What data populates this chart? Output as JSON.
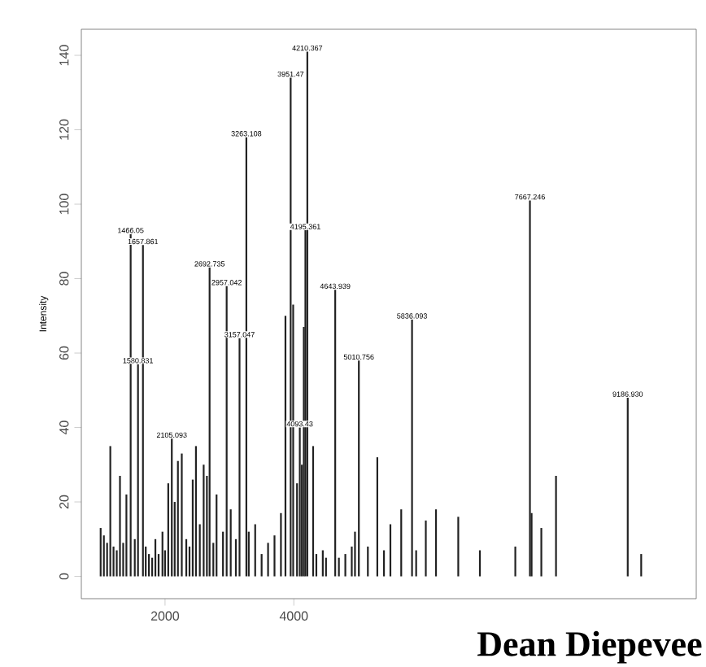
{
  "chart_data": {
    "type": "bar",
    "ylabel": "Intensity",
    "x": [
      1000,
      1050,
      1100,
      1150,
      1200,
      1250,
      1300,
      1350,
      1400,
      1466,
      1530,
      1580,
      1657,
      1700,
      1750,
      1800,
      1850,
      1900,
      1960,
      2000,
      2050,
      2105,
      2150,
      2200,
      2260,
      2330,
      2380,
      2430,
      2480,
      2540,
      2600,
      2650,
      2692,
      2750,
      2800,
      2900,
      2957,
      3020,
      3100,
      3157,
      3263,
      3300,
      3400,
      3500,
      3600,
      3700,
      3800,
      3870,
      3951,
      3990,
      4050,
      4093,
      4125,
      4155,
      4180,
      4210,
      4300,
      4350,
      4450,
      4500,
      4643,
      4700,
      4800,
      4900,
      4950,
      5010,
      5150,
      5297,
      5400,
      5500,
      5668,
      5836,
      5900,
      6050,
      6208,
      6554,
      6890,
      7440,
      7667,
      7693,
      7844,
      8072,
      9186,
      9395
    ],
    "values": [
      13,
      11,
      9,
      35,
      8,
      7,
      27,
      9,
      22,
      92,
      10,
      57,
      89,
      8,
      6,
      5,
      10,
      6,
      12,
      7,
      25,
      37,
      20,
      31,
      33,
      10,
      8,
      26,
      35,
      14,
      30,
      27,
      83,
      9,
      22,
      12,
      78,
      18,
      10,
      64,
      118,
      12,
      14,
      6,
      9,
      11,
      17,
      70,
      134,
      73,
      25,
      40,
      30,
      67,
      93,
      141,
      35,
      6,
      7,
      5,
      77,
      5,
      6,
      8,
      12,
      58,
      8,
      32,
      7,
      14,
      18,
      69,
      7,
      15,
      18,
      16,
      7,
      8,
      101,
      17,
      13,
      27,
      48,
      6
    ],
    "color": "#222222",
    "xlim": [
      700,
      10250
    ],
    "ylim": [
      -6,
      147
    ],
    "xticks": [
      2000,
      4000
    ],
    "yticks": [
      0,
      20,
      40,
      60,
      80,
      100,
      120,
      140
    ],
    "grid": false,
    "legend": false,
    "annotations": [
      {
        "text": "1466.05",
        "x": 1466,
        "y": 92
      },
      {
        "text": "1580.831",
        "x": 1580,
        "y": 57
      },
      {
        "text": "1657.861",
        "x": 1657,
        "y": 89
      },
      {
        "text": "2105.093",
        "x": 2105,
        "y": 37
      },
      {
        "text": "2692.735",
        "x": 2692,
        "y": 83
      },
      {
        "text": "2957.042",
        "x": 2957,
        "y": 78
      },
      {
        "text": "3157.047",
        "x": 3157,
        "y": 64
      },
      {
        "text": "3263.108",
        "x": 3263,
        "y": 118
      },
      {
        "text": "3951.47",
        "x": 3951,
        "y": 134
      },
      {
        "text": "4093.43",
        "x": 4093,
        "y": 40
      },
      {
        "text": "4195.361",
        "x": 4180,
        "y": 93
      },
      {
        "text": "4210.367",
        "x": 4210,
        "y": 141
      },
      {
        "text": "4643.939",
        "x": 4643,
        "y": 77
      },
      {
        "text": "5010.756",
        "x": 5010,
        "y": 58
      },
      {
        "text": "5836.093",
        "x": 5836,
        "y": 69
      },
      {
        "text": "7667.246",
        "x": 7667,
        "y": 101
      },
      {
        "text": "9186.930",
        "x": 9186,
        "y": 48
      },
      "Dean Diepevee"
    ]
  }
}
